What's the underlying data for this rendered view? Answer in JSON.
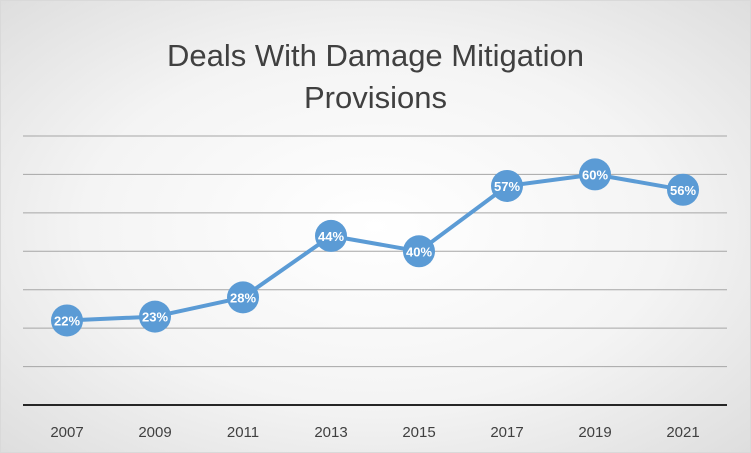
{
  "chart_data": {
    "type": "line",
    "title_lines": [
      "Deals With Damage Mitigation",
      "Provisions"
    ],
    "title": "Deals With Damage Mitigation Provisions",
    "xlabel": "",
    "ylabel": "",
    "categories": [
      "2007",
      "2009",
      "2011",
      "2013",
      "2015",
      "2017",
      "2019",
      "2021"
    ],
    "series": [
      {
        "values": [
          22,
          23,
          28,
          44,
          40,
          57,
          60,
          56
        ],
        "data_labels": [
          "22%",
          "23%",
          "28%",
          "44%",
          "40%",
          "57%",
          "60%",
          "56%"
        ]
      }
    ],
    "ylim": [
      0,
      70
    ],
    "y_grid_step": 10,
    "grid": true,
    "y_tick_labels_visible": false,
    "legend": "none",
    "colors": {
      "line": "#5b9bd5",
      "marker_fill": "#5b9bd5",
      "gridline": "#a6a6a6",
      "axis": "#262626"
    }
  }
}
